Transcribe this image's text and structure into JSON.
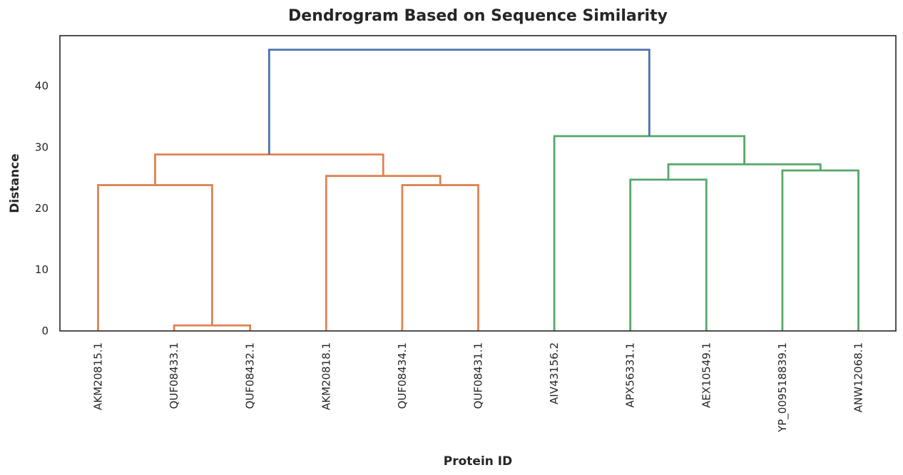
{
  "chart_data": {
    "type": "dendrogram",
    "title": "Dendrogram Based on Sequence Similarity",
    "xlabel": "Protein ID",
    "ylabel": "Distance",
    "ylim": [
      0,
      48.2
    ],
    "yticks": [
      0,
      10,
      20,
      30,
      40
    ],
    "grid": false,
    "leaves": [
      "AKM20815.1",
      "QUF08433.1",
      "QUF08432.1",
      "AKM20818.1",
      "QUF08434.1",
      "QUF08431.1",
      "AIV43156.2",
      "APX56331.1",
      "AEX10549.1",
      "YP_009518839.1",
      "ANW12068.1"
    ],
    "colors": {
      "cluster_orange": "#dd8452",
      "cluster_green": "#55a868",
      "root_blue": "#4c72b0"
    },
    "links": [
      {
        "left": "QUF08433.1",
        "right": "QUF08432.1",
        "height": 0.9,
        "color": "cluster_orange",
        "id": "c1"
      },
      {
        "left": "AKM20815.1",
        "right": "c1",
        "height": 23.8,
        "color": "cluster_orange",
        "id": "c2"
      },
      {
        "left": "QUF08434.1",
        "right": "QUF08431.1",
        "height": 23.8,
        "color": "cluster_orange",
        "id": "c3"
      },
      {
        "left": "AKM20818.1",
        "right": "c3",
        "height": 25.3,
        "color": "cluster_orange",
        "id": "c4"
      },
      {
        "left": "c2",
        "right": "c4",
        "height": 28.8,
        "color": "cluster_orange",
        "id": "c5"
      },
      {
        "left": "APX56331.1",
        "right": "AEX10549.1",
        "height": 24.7,
        "color": "cluster_green",
        "id": "c6"
      },
      {
        "left": "YP_009518839.1",
        "right": "ANW12068.1",
        "height": 26.2,
        "color": "cluster_green",
        "id": "c7"
      },
      {
        "left": "c6",
        "right": "c7",
        "height": 27.2,
        "color": "cluster_green",
        "id": "c8"
      },
      {
        "left": "AIV43156.2",
        "right": "c8",
        "height": 31.8,
        "color": "cluster_green",
        "id": "c9"
      },
      {
        "left": "c5",
        "right": "c9",
        "height": 45.9,
        "color": "root_blue",
        "id": "c10"
      }
    ]
  }
}
